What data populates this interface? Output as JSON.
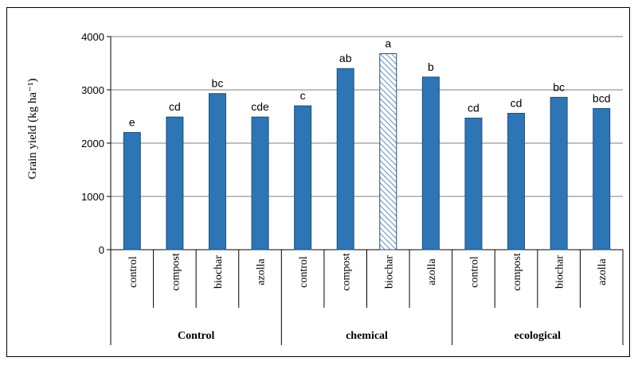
{
  "chart_data": {
    "type": "bar",
    "ylabel": "Grain yield (kg ha⁻¹)",
    "ylim": [
      0,
      4000
    ],
    "yticks": [
      0,
      1000,
      2000,
      3000,
      4000
    ],
    "grid": true,
    "groups": [
      {
        "label": "Control",
        "categories": [
          "control",
          "compost",
          "biochar",
          "azolla"
        ]
      },
      {
        "label": "chemical",
        "categories": [
          "control",
          "compost",
          "biochar",
          "azolla"
        ]
      },
      {
        "label": "ecological",
        "categories": [
          "control",
          "compost",
          "biochar",
          "azolla"
        ]
      }
    ],
    "bars": [
      {
        "group": "Control",
        "category": "control",
        "value": 2200,
        "letter": "e",
        "hatched": false
      },
      {
        "group": "Control",
        "category": "compost",
        "value": 2490,
        "letter": "cd",
        "hatched": false
      },
      {
        "group": "Control",
        "category": "biochar",
        "value": 2930,
        "letter": "bc",
        "hatched": false
      },
      {
        "group": "Control",
        "category": "azolla",
        "value": 2490,
        "letter": "cde",
        "hatched": false
      },
      {
        "group": "chemical",
        "category": "control",
        "value": 2700,
        "letter": "c",
        "hatched": false
      },
      {
        "group": "chemical",
        "category": "compost",
        "value": 3400,
        "letter": "ab",
        "hatched": false
      },
      {
        "group": "chemical",
        "category": "biochar",
        "value": 3680,
        "letter": "a",
        "hatched": true
      },
      {
        "group": "chemical",
        "category": "azolla",
        "value": 3240,
        "letter": "b",
        "hatched": false
      },
      {
        "group": "ecological",
        "category": "control",
        "value": 2470,
        "letter": "cd",
        "hatched": false
      },
      {
        "group": "ecological",
        "category": "compost",
        "value": 2560,
        "letter": "cd",
        "hatched": false
      },
      {
        "group": "ecological",
        "category": "biochar",
        "value": 2860,
        "letter": "bc",
        "hatched": false
      },
      {
        "group": "ecological",
        "category": "azolla",
        "value": 2650,
        "letter": "bcd",
        "hatched": false
      }
    ],
    "colors": {
      "bar_fill": "#2E75B6",
      "bar_stroke": "#1F4E79",
      "hatch": "#2E75B6",
      "grid": "#7f7f7f"
    }
  }
}
